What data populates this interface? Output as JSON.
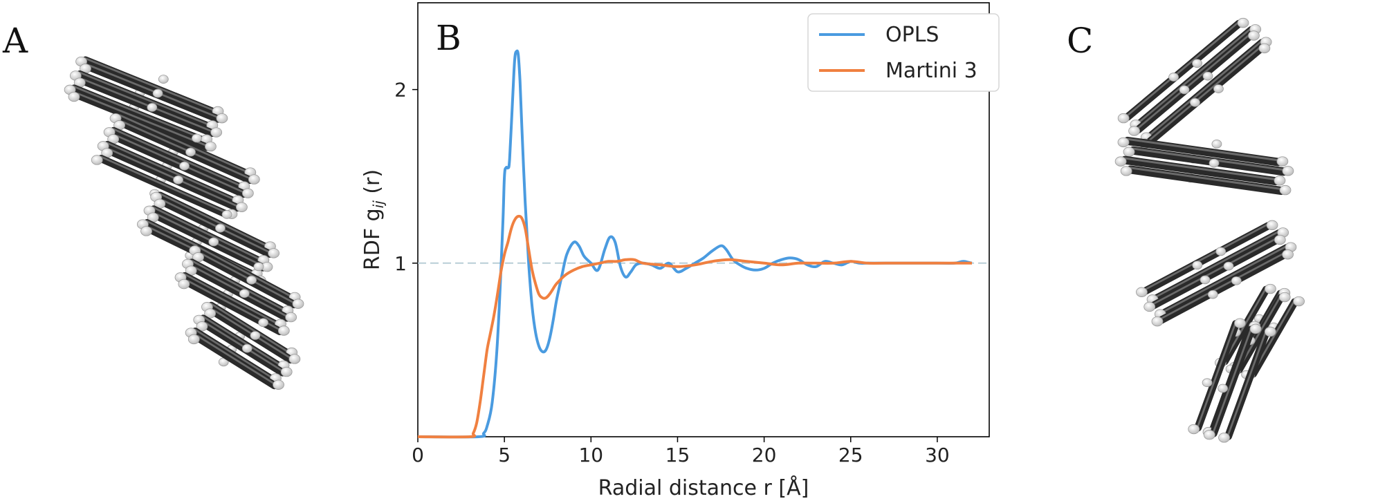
{
  "panels": {
    "a_label": "A",
    "b_label": "B",
    "c_label": "C"
  },
  "colors": {
    "opls": "#4a9be0",
    "martini": "#f08040",
    "reference_line": "#b8cdd6",
    "molecule_dark": "#2a2a2a",
    "molecule_hydrogen": "#efefef"
  },
  "chart_data": {
    "type": "line",
    "ylabel": "RDF g_ij (r)",
    "ylabel_parts": {
      "main": "RDF g",
      "sub": "ij",
      "tail": " (r)"
    },
    "xlabel": "Radial distance r [Å]",
    "xlim": [
      0,
      33
    ],
    "ylim": [
      0,
      2.5
    ],
    "xticks": [
      0,
      5,
      10,
      15,
      20,
      25,
      30
    ],
    "yticks": [
      1,
      2
    ],
    "reference_line": 1,
    "grid": false,
    "legend_position": "top-right",
    "series": [
      {
        "name": "OPLS",
        "x": [
          0,
          3.5,
          3.8,
          4.0,
          4.3,
          4.6,
          4.9,
          5.0,
          5.1,
          5.2,
          5.3,
          5.5,
          5.6,
          5.7,
          5.8,
          5.9,
          6.0,
          6.2,
          6.4,
          6.6,
          6.8,
          7.0,
          7.2,
          7.4,
          7.6,
          7.8,
          8.0,
          8.3,
          8.6,
          9.0,
          9.3,
          9.6,
          10.0,
          10.4,
          10.8,
          11.1,
          11.4,
          11.7,
          12.0,
          12.3,
          12.6,
          13.0,
          13.5,
          14.0,
          14.5,
          15.0,
          15.5,
          16.0,
          16.5,
          17.0,
          17.5,
          17.8,
          18.2,
          18.6,
          19.0,
          19.5,
          20.0,
          20.5,
          21.0,
          21.5,
          22.0,
          22.5,
          23.0,
          23.5,
          24.0,
          24.5,
          25.0,
          25.5,
          26.0,
          27.0,
          28.0,
          29.0,
          30.0,
          31.0,
          31.5,
          32.0
        ],
        "y": [
          0,
          0,
          0.02,
          0.06,
          0.2,
          0.55,
          1.2,
          1.5,
          1.55,
          1.55,
          1.6,
          2.0,
          2.18,
          2.22,
          2.2,
          2.05,
          1.8,
          1.35,
          1.0,
          0.75,
          0.6,
          0.52,
          0.49,
          0.5,
          0.56,
          0.66,
          0.78,
          0.92,
          1.05,
          1.12,
          1.1,
          1.04,
          1.0,
          0.96,
          1.08,
          1.15,
          1.12,
          0.98,
          0.92,
          0.95,
          0.99,
          1.0,
          0.99,
          0.97,
          1.0,
          0.95,
          0.97,
          1.0,
          1.03,
          1.07,
          1.1,
          1.08,
          1.02,
          0.99,
          0.97,
          0.96,
          0.97,
          1.0,
          1.02,
          1.03,
          1.02,
          0.99,
          0.98,
          1.01,
          1.0,
          0.99,
          1.01,
          1.0,
          1.0,
          1.0,
          1.0,
          1.0,
          1.0,
          1.0,
          1.01,
          1.0
        ]
      },
      {
        "name": "Martini 3",
        "x": [
          0,
          3.0,
          3.2,
          3.4,
          3.6,
          3.8,
          4.0,
          4.2,
          4.4,
          4.6,
          4.8,
          5.0,
          5.2,
          5.4,
          5.6,
          5.8,
          6.0,
          6.2,
          6.4,
          6.6,
          6.8,
          7.0,
          7.2,
          7.4,
          7.6,
          7.8,
          8.0,
          8.5,
          9.0,
          9.5,
          10.0,
          10.5,
          11.0,
          11.5,
          12.0,
          12.5,
          13.0,
          14.0,
          15.0,
          16.0,
          17.0,
          18.0,
          19.0,
          20.0,
          21.0,
          22.0,
          23.0,
          24.0,
          25.0,
          26.0,
          27.0,
          28.0,
          29.0,
          30.0,
          31.0,
          32.0
        ],
        "y": [
          0,
          0,
          0.02,
          0.08,
          0.2,
          0.35,
          0.5,
          0.6,
          0.7,
          0.82,
          0.95,
          1.05,
          1.12,
          1.2,
          1.25,
          1.27,
          1.26,
          1.2,
          1.08,
          0.96,
          0.88,
          0.82,
          0.8,
          0.8,
          0.82,
          0.85,
          0.88,
          0.93,
          0.96,
          0.98,
          0.99,
          1.0,
          1.01,
          1.01,
          1.02,
          1.02,
          1.0,
          0.99,
          0.98,
          0.99,
          1.01,
          1.02,
          1.01,
          1.0,
          0.99,
          1.0,
          1.0,
          1.0,
          1.01,
          1.0,
          1.0,
          1.0,
          1.0,
          1.0,
          1.0,
          1.0
        ]
      }
    ]
  }
}
